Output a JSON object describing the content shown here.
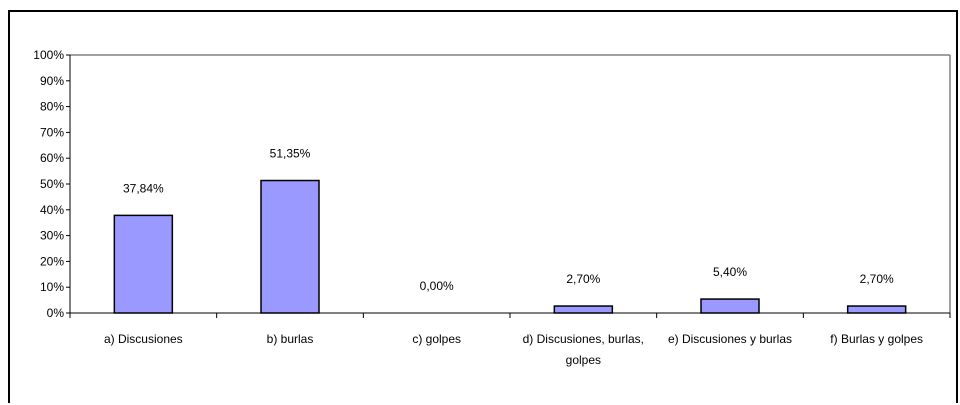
{
  "chart_data": {
    "type": "bar",
    "categories": [
      [
        "a) Discusiones"
      ],
      [
        "b) burlas"
      ],
      [
        "c) golpes"
      ],
      [
        "d) Discusiones, burlas,",
        "golpes"
      ],
      [
        "e) Discusiones y burlas"
      ],
      [
        "f) Burlas y golpes"
      ]
    ],
    "values": [
      37.84,
      51.35,
      0.0,
      2.7,
      5.4,
      2.7
    ],
    "data_labels": [
      "37,84%",
      "51,35%",
      "0,00%",
      "2,70%",
      "5,40%",
      "2,70%"
    ],
    "y_ticks": [
      "0%",
      "10%",
      "20%",
      "30%",
      "40%",
      "50%",
      "60%",
      "70%",
      "80%",
      "90%",
      "100%"
    ],
    "ylim": [
      0,
      100
    ],
    "title": "",
    "xlabel": "",
    "ylabel": "",
    "grid": false,
    "colors": {
      "bar_fill": "#9999ff",
      "bar_stroke": "#000000",
      "plot_border": "#808080"
    }
  }
}
